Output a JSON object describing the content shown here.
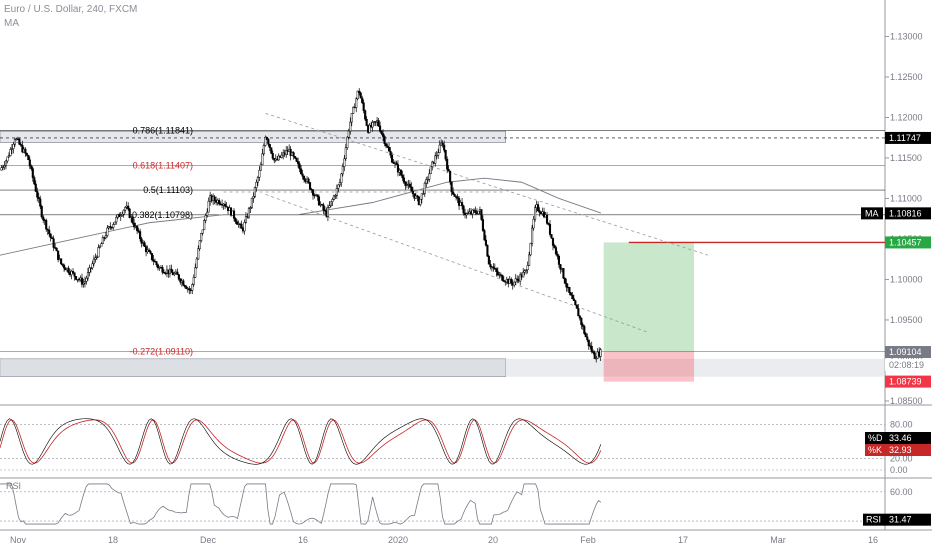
{
  "header": {
    "symbol_line": "Euro / U.S. Dollar, 240, FXCM",
    "indicator_line": "MA"
  },
  "chart_data": {
    "type": "line",
    "subtype": "candlestick",
    "symbol": "Euro / U.S. Dollar",
    "interval": "240",
    "source": "FXCM",
    "x_ticks": [
      "Nov",
      "18",
      "Dec",
      "16",
      "2020",
      "20",
      "Feb",
      "17",
      "Mar",
      "16"
    ],
    "price_axis": {
      "ticks": [
        "1.13000",
        "1.12500",
        "1.12000",
        "1.11500",
        "1.11000",
        "1.10500",
        "1.10000",
        "1.09500",
        "1.09000",
        "1.08500"
      ],
      "range": [
        1.0845,
        1.1345
      ]
    },
    "price_series_keypoints": [
      {
        "x": 0.0,
        "y": 1.1135
      },
      {
        "x": 0.8,
        "y": 1.115
      },
      {
        "x": 1.6,
        "y": 1.1175
      },
      {
        "x": 3.0,
        "y": 1.115
      },
      {
        "x": 4.5,
        "y": 1.108
      },
      {
        "x": 6.5,
        "y": 1.102
      },
      {
        "x": 9.0,
        "y": 1.0995
      },
      {
        "x": 11.5,
        "y": 1.106
      },
      {
        "x": 13.5,
        "y": 1.109
      },
      {
        "x": 15.5,
        "y": 1.104
      },
      {
        "x": 17.0,
        "y": 1.1015
      },
      {
        "x": 19.0,
        "y": 1.1005
      },
      {
        "x": 20.5,
        "y": 1.0985
      },
      {
        "x": 21.5,
        "y": 1.105
      },
      {
        "x": 22.5,
        "y": 1.11
      },
      {
        "x": 24.0,
        "y": 1.1095
      },
      {
        "x": 25.0,
        "y": 1.108
      },
      {
        "x": 26.0,
        "y": 1.106
      },
      {
        "x": 27.0,
        "y": 1.1095
      },
      {
        "x": 28.0,
        "y": 1.114
      },
      {
        "x": 28.5,
        "y": 1.118
      },
      {
        "x": 29.5,
        "y": 1.1145
      },
      {
        "x": 31.0,
        "y": 1.116
      },
      {
        "x": 32.0,
        "y": 1.114
      },
      {
        "x": 33.5,
        "y": 1.111
      },
      {
        "x": 35.0,
        "y": 1.108
      },
      {
        "x": 36.5,
        "y": 1.112
      },
      {
        "x": 37.5,
        "y": 1.119
      },
      {
        "x": 38.5,
        "y": 1.1235
      },
      {
        "x": 39.5,
        "y": 1.1185
      },
      {
        "x": 40.5,
        "y": 1.1195
      },
      {
        "x": 42.0,
        "y": 1.115
      },
      {
        "x": 43.5,
        "y": 1.112
      },
      {
        "x": 45.0,
        "y": 1.1095
      },
      {
        "x": 46.5,
        "y": 1.1145
      },
      {
        "x": 47.5,
        "y": 1.117
      },
      {
        "x": 48.5,
        "y": 1.111
      },
      {
        "x": 50.0,
        "y": 1.108
      },
      {
        "x": 51.5,
        "y": 1.1085
      },
      {
        "x": 52.5,
        "y": 1.102
      },
      {
        "x": 53.5,
        "y": 1.1005
      },
      {
        "x": 55.0,
        "y": 1.0995
      },
      {
        "x": 56.5,
        "y": 1.101
      },
      {
        "x": 57.5,
        "y": 1.109
      },
      {
        "x": 58.5,
        "y": 1.108
      },
      {
        "x": 59.5,
        "y": 1.104
      },
      {
        "x": 61.0,
        "y": 1.0985
      },
      {
        "x": 62.0,
        "y": 1.096
      },
      {
        "x": 63.0,
        "y": 1.0925
      },
      {
        "x": 63.8,
        "y": 1.0905
      },
      {
        "x": 64.5,
        "y": 1.091
      }
    ],
    "moving_average_keypoints": [
      {
        "x": 0.0,
        "y": 1.103
      },
      {
        "x": 8.0,
        "y": 1.105
      },
      {
        "x": 16.0,
        "y": 1.107
      },
      {
        "x": 24.0,
        "y": 1.108
      },
      {
        "x": 32.0,
        "y": 1.108
      },
      {
        "x": 40.0,
        "y": 1.1095
      },
      {
        "x": 48.0,
        "y": 1.112
      },
      {
        "x": 52.0,
        "y": 1.1125
      },
      {
        "x": 56.0,
        "y": 1.112
      },
      {
        "x": 60.0,
        "y": 1.11
      },
      {
        "x": 64.5,
        "y": 1.1082
      }
    ],
    "fibonacci_levels": [
      {
        "label": "0.786(1.11841)",
        "price": 1.11841,
        "color": "#000000"
      },
      {
        "label": "0.618(1.11407)",
        "price": 1.11407,
        "color": "#c62828"
      },
      {
        "label": "0.5(1.11103)",
        "price": 1.11103,
        "color": "#000000"
      },
      {
        "label": "0.382(1.10798)",
        "price": 1.10798,
        "color": "#000000"
      },
      {
        "label": "-0.272(1.09110)",
        "price": 1.0911,
        "color": "#c62828"
      }
    ],
    "support_zones": [
      {
        "low": 1.1169,
        "high": 1.1183
      },
      {
        "low": 1.088,
        "high": 1.0902
      }
    ],
    "horizontal_lines": [
      {
        "price": 1.11747,
        "style": "dashed"
      },
      {
        "price": 1.10457,
        "style": "solid",
        "color": "#c62828"
      }
    ],
    "trend_lines": [
      {
        "from": {
          "x": 28.5,
          "y": 1.1205
        },
        "to": {
          "x": 76.0,
          "y": 1.103
        }
      },
      {
        "from": {
          "x": 28.5,
          "y": 1.1105
        },
        "to": {
          "x": 69.5,
          "y": 1.0935
        }
      },
      {
        "from": {
          "x": 24.0,
          "y": 1.1108
        },
        "to": {
          "x": 54.0,
          "y": 1.1108
        }
      }
    ],
    "position": {
      "type": "long",
      "entry": 1.09104,
      "target": 1.10457,
      "stop": 1.08739,
      "x_range": [
        64.8,
        74.5
      ]
    },
    "price_labels": [
      {
        "value": "1.11747",
        "price": 1.11747,
        "bg": "#000000",
        "fg": "#ffffff"
      },
      {
        "value": "1.10816",
        "price": 1.10816,
        "bg": "#000000",
        "fg": "#ffffff",
        "tag": "MA"
      },
      {
        "value": "1.10457",
        "price": 1.10457,
        "bg": "#27a844",
        "fg": "#ffffff"
      },
      {
        "value": "1.09104",
        "price": 1.09104,
        "bg": "#787b86",
        "fg": "#ffffff"
      },
      {
        "value": "02:08:19",
        "price": 1.08945,
        "bg": "#ffffff",
        "fg": "#787b86"
      },
      {
        "value": "1.08739",
        "price": 1.08739,
        "bg": "#f23645",
        "fg": "#ffffff"
      }
    ],
    "stochastic": {
      "ticks": [
        "80.00",
        "20.00",
        "0.00"
      ],
      "range": [
        0,
        100
      ],
      "d_label": "%D",
      "d_value": "33.46",
      "k_label": "%K",
      "k_value": "32.93"
    },
    "rsi": {
      "label": "RSI",
      "value": "31.47",
      "ticks": [
        "60.00"
      ],
      "range": [
        25,
        70
      ]
    }
  }
}
